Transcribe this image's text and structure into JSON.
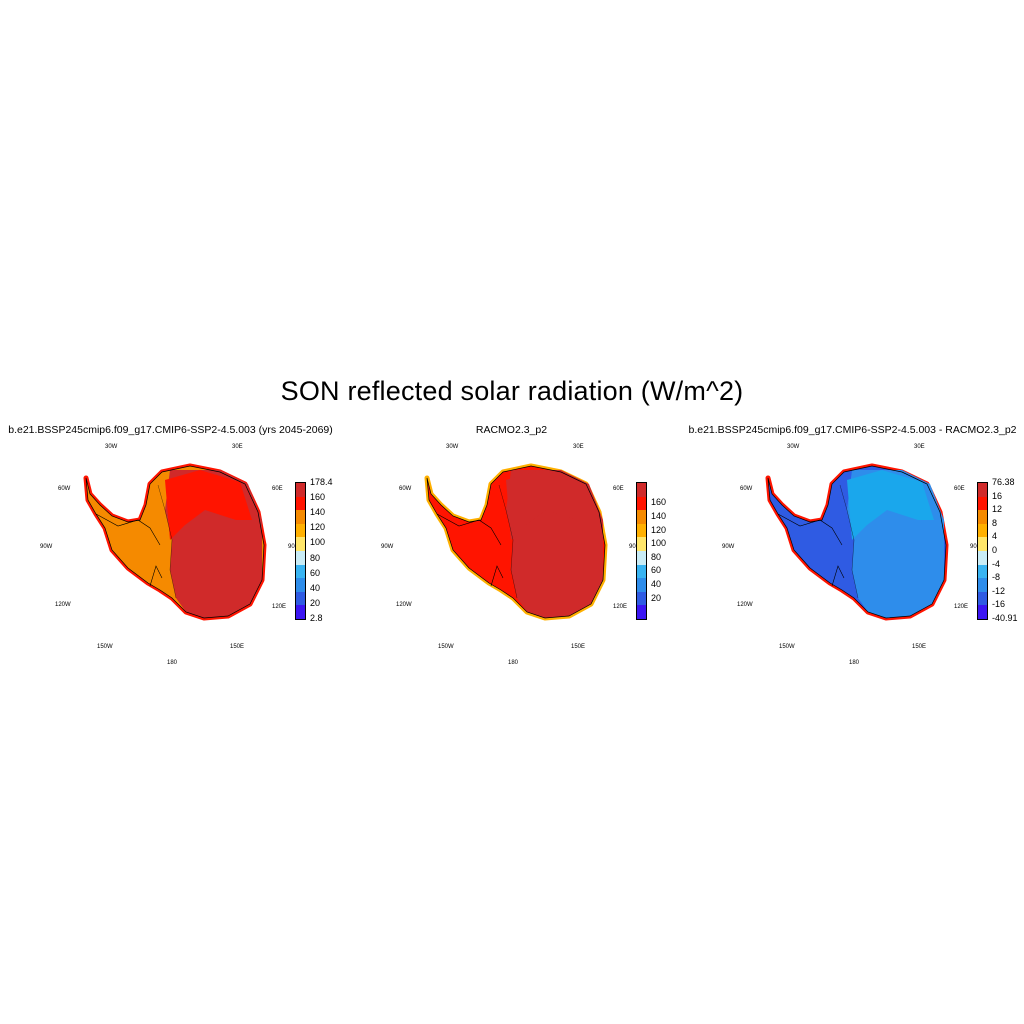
{
  "title": "SON reflected solar radiation (W/m^2)",
  "longitude_labels": [
    "30W",
    "30E",
    "60W",
    "60E",
    "90W",
    "90E",
    "120W",
    "120E",
    "150W",
    "150E",
    "180"
  ],
  "panels": [
    {
      "title": "b.e21.BSSP245cmip6.f09_g17.CMIP6-SSP2-4.5.003 (yrs 2045-2069)",
      "colorbar": {
        "colors": [
          "#3B16F2",
          "#2F5BE3",
          "#2E8DEB",
          "#39B4F2",
          "#C9ECF6",
          "#FFE66A",
          "#FFB000",
          "#F58A00",
          "#FF1400",
          "#D02A2A"
        ],
        "labels": [
          "2.8",
          "20",
          "40",
          "60",
          "80",
          "100",
          "120",
          "140",
          "160",
          "178.4"
        ]
      },
      "map_fill": {
        "west": "#F58A00",
        "east_inner": "#FF1400",
        "east_outer": "#D02A2A",
        "edge": "#FF1400"
      }
    },
    {
      "title": "RACMO2.3_p2",
      "colorbar": {
        "colors": [
          "#3B16F2",
          "#2F5BE3",
          "#2E8DEB",
          "#39B4F2",
          "#C9ECF6",
          "#FFE66A",
          "#FFB000",
          "#F58A00",
          "#FF1400",
          "#D02A2A"
        ],
        "labels": [
          "20",
          "40",
          "60",
          "80",
          "100",
          "120",
          "140",
          "160"
        ]
      },
      "map_fill": {
        "west": "#FF1400",
        "east_inner": "#D02A2A",
        "east_outer": "#D02A2A",
        "edge": "#FFB000"
      }
    },
    {
      "title": "b.e21.BSSP245cmip6.f09_g17.CMIP6-SSP2-4.5.003 - RACMO2.3_p2",
      "colorbar": {
        "colors": [
          "#3B16F2",
          "#2F5BE3",
          "#2E8DEB",
          "#39B4F2",
          "#C9ECF6",
          "#FFE66A",
          "#FFB000",
          "#F58A00",
          "#FF1400",
          "#D02A2A"
        ],
        "labels": [
          "-40.91",
          "-16",
          "-12",
          "-8",
          "-4",
          "0",
          "4",
          "8",
          "12",
          "16",
          "76.38"
        ]
      },
      "map_fill": {
        "west": "#2F5BE3",
        "east_inner": "#1AA7EC",
        "east_outer": "#2E8DEB",
        "edge": "#FF1400"
      }
    }
  ]
}
